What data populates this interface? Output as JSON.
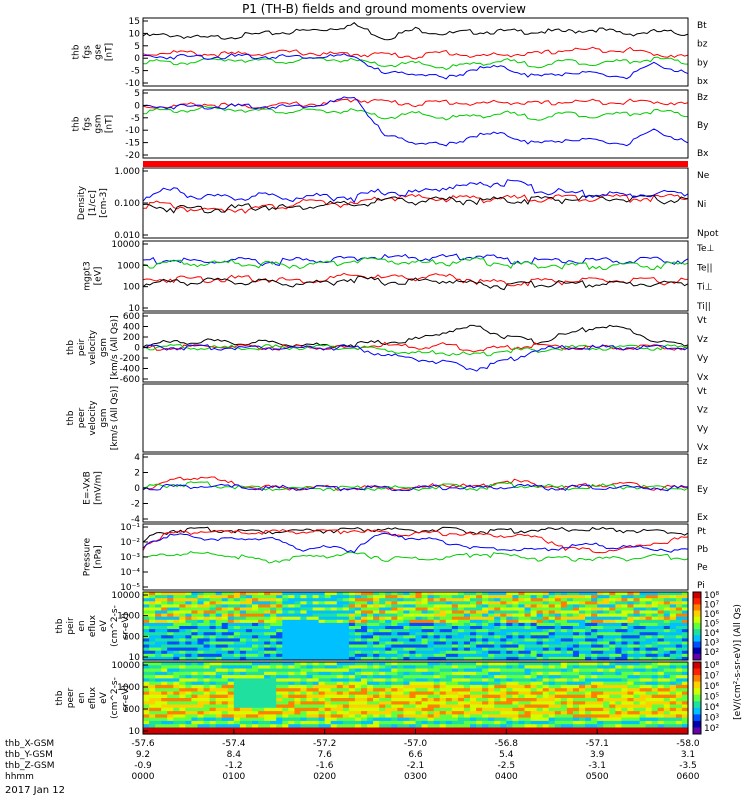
{
  "title": "P1 (TH-B) fields and ground moments overview",
  "date_label": "2017 Jan 12",
  "chart_data": [
    {
      "type": "line",
      "id": "fgs_gse",
      "ylabel": [
        "thb",
        "fgs",
        "gse",
        "[nT]"
      ],
      "yticks": [
        "15",
        "10",
        "5",
        "0",
        "-5",
        "-10"
      ],
      "ylim": [
        -13,
        17
      ],
      "legend": [
        {
          "name": "Bt",
          "color": "#000000"
        },
        {
          "name": "bz",
          "color": "#ff0000"
        },
        {
          "name": "by",
          "color": "#00cc00"
        },
        {
          "name": "bx",
          "color": "#0000ff"
        }
      ],
      "series": [
        {
          "name": "Bt",
          "color": "#000000",
          "values": [
            9,
            9.5,
            8,
            9,
            10,
            11,
            12,
            14,
            8,
            12,
            10,
            11,
            11,
            11,
            11,
            12,
            10,
            11,
            10
          ]
        },
        {
          "name": "bz",
          "color": "#ff0000",
          "values": [
            1,
            2,
            1,
            1,
            1.5,
            2,
            1,
            1,
            1,
            0,
            2,
            0,
            1,
            1,
            3,
            3,
            3,
            1,
            0
          ]
        },
        {
          "name": "by",
          "color": "#00cc00",
          "values": [
            -2,
            -3,
            -2,
            -1,
            -2,
            -2,
            -1,
            -2,
            -4,
            -3,
            -5,
            -3,
            -2,
            -4,
            -2,
            -3,
            -2,
            -1,
            -3
          ]
        },
        {
          "name": "bx",
          "color": "#0000ff",
          "values": [
            0,
            0,
            0,
            0,
            0,
            0,
            0,
            0,
            -8,
            -7,
            -10,
            -5,
            -5,
            -9,
            -7,
            -8,
            -9,
            -3,
            -8
          ]
        }
      ]
    },
    {
      "type": "line",
      "id": "fgs_gsm",
      "ylabel": [
        "thb",
        "fgs",
        "gsm",
        "[nT]"
      ],
      "yticks": [
        "5",
        "0",
        "-5",
        "-10",
        "-15",
        "-20"
      ],
      "ylim": [
        -22,
        7
      ],
      "legend": [
        {
          "name": "Bz",
          "color": "#ff0000"
        },
        {
          "name": "By",
          "color": "#00cc00"
        },
        {
          "name": "Bx",
          "color": "#0000ff"
        }
      ],
      "series": [
        {
          "name": "Bz",
          "color": "#ff0000",
          "values": [
            0,
            0,
            1,
            0,
            0,
            1,
            1,
            3,
            2,
            1,
            2,
            1,
            2,
            1,
            2,
            2,
            2,
            2,
            1
          ]
        },
        {
          "name": "By",
          "color": "#00cc00",
          "values": [
            -2,
            -2,
            -1,
            -1,
            -2,
            -2,
            -2,
            -2,
            -5,
            -3,
            -5,
            -4,
            -3,
            -5,
            -3,
            -4,
            -3,
            -2,
            -4
          ]
        },
        {
          "name": "Bx",
          "color": "#0000ff",
          "values": [
            0,
            0,
            0,
            0,
            0,
            0,
            1,
            4,
            -13,
            -15,
            -17,
            -12,
            -12,
            -16,
            -14,
            -15,
            -16,
            -10,
            -16
          ]
        }
      ]
    },
    {
      "type": "line",
      "id": "density",
      "ylabel": [
        "Density",
        "[1/cc]",
        "[cm-3]"
      ],
      "yticks": [
        "1.000",
        "0.100",
        "0.010"
      ],
      "scale": "log",
      "ylim": [
        0.003,
        1.3
      ],
      "legend": [
        {
          "name": "Ne",
          "color": "#ff0000"
        },
        {
          "name": "Ni",
          "color": "#000000"
        },
        {
          "name": "Npot",
          "color": "#0000ff"
        }
      ],
      "series": [
        {
          "name": "Ne",
          "color": "#ff0000",
          "values": [
            0.06,
            0.05,
            0.03,
            0.04,
            0.04,
            0.06,
            0.07,
            0.05,
            0.1,
            0.1,
            0.09,
            0.1,
            0.09,
            0.1,
            0.1,
            0.11,
            0.1,
            0.1,
            0.1
          ]
        },
        {
          "name": "Ni",
          "color": "#000000",
          "values": [
            0.05,
            0.04,
            0.04,
            0.04,
            0.05,
            0.04,
            0.06,
            0.05,
            0.08,
            0.08,
            0.08,
            0.08,
            0.08,
            0.09,
            0.09,
            0.09,
            0.09,
            0.09,
            0.08
          ]
        },
        {
          "name": "Npot",
          "color": "#0000ff",
          "values": [
            0.1,
            0.2,
            0.1,
            0.1,
            0.12,
            0.1,
            0.12,
            0.1,
            0.18,
            0.15,
            0.25,
            0.3,
            0.4,
            0.2,
            0.15,
            0.14,
            0.12,
            0.15,
            0.14
          ]
        }
      ]
    },
    {
      "type": "line",
      "id": "temperature",
      "ylabel": [
        "mgpt3",
        "[eV]"
      ],
      "yticks": [
        "10000",
        "1000",
        "100",
        "10"
      ],
      "scale": "log",
      "ylim": [
        10,
        10000
      ],
      "legend": [
        {
          "name": "Te⊥",
          "color": "#ff0000"
        },
        {
          "name": "Te||",
          "color": "#000000"
        },
        {
          "name": "Ti⊥",
          "color": "#0000ff"
        },
        {
          "name": "Ti||",
          "color": "#00cc00"
        }
      ],
      "series": [
        {
          "name": "Te⊥",
          "color": "#ff0000",
          "values": [
            200,
            250,
            250,
            250,
            250,
            200,
            220,
            350,
            250,
            300,
            300,
            200,
            150,
            200,
            200,
            200,
            200,
            200,
            200
          ]
        },
        {
          "name": "Te||",
          "color": "#000000",
          "values": [
            150,
            180,
            200,
            180,
            180,
            150,
            170,
            250,
            180,
            200,
            200,
            150,
            120,
            150,
            150,
            150,
            150,
            150,
            150
          ]
        },
        {
          "name": "Ti⊥",
          "color": "#0000ff",
          "values": [
            1500,
            1500,
            1200,
            1500,
            1200,
            1500,
            1500,
            2000,
            2000,
            2000,
            2000,
            2500,
            1500,
            1500,
            1500,
            1500,
            1500,
            1500,
            1500
          ]
        },
        {
          "name": "Ti||",
          "color": "#00cc00",
          "values": [
            1000,
            1200,
            1000,
            1200,
            1000,
            900,
            1000,
            1500,
            1500,
            1200,
            1200,
            1500,
            1000,
            1000,
            900,
            900,
            900,
            900,
            1000
          ]
        }
      ]
    },
    {
      "type": "line",
      "id": "peir_velocity",
      "ylabel": [
        "thb",
        "peir",
        "velocity",
        "gsm",
        "[km/s (All Qs)]"
      ],
      "yticks": [
        "600",
        "400",
        "200",
        "0",
        "-200",
        "-400",
        "-600"
      ],
      "ylim": [
        -650,
        650
      ],
      "legend": [
        {
          "name": "Vt",
          "color": "#000000"
        },
        {
          "name": "Vz",
          "color": "#ff0000"
        },
        {
          "name": "Vy",
          "color": "#00cc00"
        },
        {
          "name": "Vx",
          "color": "#0000ff"
        }
      ],
      "series": [
        {
          "name": "Vt",
          "color": "#000000",
          "values": [
            50,
            100,
            120,
            80,
            100,
            60,
            40,
            60,
            100,
            150,
            300,
            400,
            200,
            100,
            250,
            400,
            350,
            100,
            50
          ]
        },
        {
          "name": "Vz",
          "color": "#ff0000",
          "values": [
            0,
            -20,
            30,
            0,
            0,
            0,
            0,
            0,
            50,
            0,
            50,
            -50,
            0,
            50,
            0,
            0,
            0,
            0,
            0
          ]
        },
        {
          "name": "Vy",
          "color": "#00cc00",
          "values": [
            0,
            20,
            -20,
            0,
            0,
            0,
            0,
            0,
            -50,
            -100,
            -100,
            -150,
            -50,
            -50,
            0,
            0,
            0,
            0,
            0
          ]
        },
        {
          "name": "Vx",
          "color": "#0000ff",
          "values": [
            0,
            0,
            0,
            0,
            0,
            0,
            0,
            0,
            -150,
            -200,
            -300,
            -400,
            -250,
            -50,
            0,
            0,
            0,
            0,
            0
          ]
        }
      ]
    },
    {
      "type": "line",
      "id": "peer_velocity",
      "ylabel": [
        "thb",
        "peer",
        "velocity",
        "gsm",
        "[km/s (All Qs)]"
      ],
      "yticks": [],
      "ylim": [
        0,
        1
      ],
      "legend": [
        {
          "name": "Vt",
          "color": "#000000"
        },
        {
          "name": "Vz",
          "color": "#ff0000"
        },
        {
          "name": "Vy",
          "color": "#00cc00"
        },
        {
          "name": "Vx",
          "color": "#0000ff"
        }
      ],
      "series": []
    },
    {
      "type": "line",
      "id": "efield",
      "ylabel": [
        "E=-VxB",
        "[mV/m]"
      ],
      "yticks": [
        "4",
        "2",
        "0",
        "-2",
        "-4"
      ],
      "ylim": [
        -4.5,
        4.5
      ],
      "legend": [
        {
          "name": "Ez",
          "color": "#ff0000"
        },
        {
          "name": "Ey",
          "color": "#00cc00"
        },
        {
          "name": "Ex",
          "color": "#0000ff"
        }
      ],
      "series": [
        {
          "name": "Ez",
          "color": "#ff0000",
          "values": [
            0,
            1,
            1.5,
            0.5,
            0,
            0,
            0,
            0,
            0,
            0,
            0.5,
            0,
            1,
            0.5,
            0,
            0.5,
            0.5,
            0,
            0
          ]
        },
        {
          "name": "Ey",
          "color": "#00cc00",
          "values": [
            0,
            0.5,
            0.5,
            0.2,
            0,
            0,
            0,
            0,
            0,
            0,
            0.2,
            0,
            0.5,
            0.2,
            0,
            0.2,
            0.2,
            0,
            0
          ]
        },
        {
          "name": "Ex",
          "color": "#0000ff",
          "values": [
            0,
            0.2,
            0.2,
            0.1,
            0,
            0,
            0,
            0,
            0,
            0,
            0.1,
            0,
            0.2,
            0.1,
            0,
            0.1,
            0.1,
            0,
            0
          ]
        }
      ]
    },
    {
      "type": "line",
      "id": "pressure",
      "ylabel": [
        "Pressure",
        "[nPa]"
      ],
      "yticks": [
        "10⁻¹",
        "10⁻²",
        "10⁻³",
        "10⁻⁴",
        "10⁻⁵"
      ],
      "scale": "log",
      "ylim": [
        1e-05,
        0.15
      ],
      "legend": [
        {
          "name": "Pt",
          "color": "#000000"
        },
        {
          "name": "Pb",
          "color": "#ff0000"
        },
        {
          "name": "Pe",
          "color": "#00cc00"
        },
        {
          "name": "Pi",
          "color": "#0000ff"
        }
      ],
      "series": [
        {
          "name": "Pt",
          "color": "#000000",
          "values": [
            0.01,
            0.06,
            0.07,
            0.06,
            0.05,
            0.06,
            0.06,
            0.07,
            0.07,
            0.06,
            0.07,
            0.05,
            0.06,
            0.06,
            0.07,
            0.07,
            0.06,
            0.05,
            0.04
          ]
        },
        {
          "name": "Pb",
          "color": "#ff0000",
          "values": [
            0.004,
            0.04,
            0.05,
            0.04,
            0.05,
            0.05,
            0.05,
            0.06,
            0.04,
            0.04,
            0.04,
            0.03,
            0.03,
            0.02,
            0.004,
            0.003,
            0.004,
            0.01,
            0.02
          ]
        },
        {
          "name": "Pe",
          "color": "#00cc00",
          "values": [
            0.001,
            0.002,
            0.002,
            0.0015,
            0.0006,
            0.001,
            0.0015,
            0.002,
            0.001,
            0.001,
            0.001,
            0.002,
            0.0015,
            0.001,
            0.001,
            0.001,
            0.001,
            0.0015,
            0.001
          ]
        },
        {
          "name": "Pi",
          "color": "#0000ff",
          "values": [
            0.005,
            0.03,
            0.02,
            0.015,
            0.02,
            0.004,
            0.005,
            0.003,
            0.03,
            0.02,
            0.01,
            0.005,
            0.004,
            0.003,
            0.006,
            0.007,
            0.005,
            0.004,
            0.003
          ]
        }
      ]
    },
    {
      "type": "heatmap",
      "id": "peir_spec",
      "ylabel": [
        "thb",
        "peir",
        "en",
        "eflux",
        "eV",
        "(cm^2-s-",
        "sr-eV)"
      ],
      "yticks": [
        "10000",
        "1000",
        "100",
        "10"
      ],
      "scale": "log",
      "ylim": [
        6,
        13000
      ]
    },
    {
      "type": "heatmap",
      "id": "peer_spec",
      "ylabel": [
        "thb",
        "peer",
        "en",
        "eflux",
        "eV",
        "(cm^2-s-",
        "sr-eV)"
      ],
      "yticks": [
        "10000",
        "1000",
        "100",
        "10"
      ],
      "scale": "log",
      "ylim": [
        6,
        13000
      ]
    }
  ],
  "colorbar": {
    "label": "[eV/(cm²-s-sr-eV)] (All Qs)",
    "ticks_top": [
      "10⁸",
      "10⁷",
      "10⁶",
      "10⁵",
      "10⁴",
      "10³",
      "10²"
    ],
    "ticks_bottom": [
      "10⁸",
      "10⁷",
      "10⁶",
      "10⁵",
      "10⁴",
      "10³",
      "10²"
    ]
  },
  "x_axis": {
    "rows": [
      {
        "label": "thb_X-GSM",
        "values": [
          "-57.6",
          "-57.4",
          "-57.2",
          "-57.0",
          "-56.8",
          "-57.1",
          "-58.0"
        ]
      },
      {
        "label": "thb_Y-GSM",
        "values": [
          "9.2",
          "8.4",
          "7.6",
          "6.6",
          "5.4",
          "3.9",
          "3.1"
        ]
      },
      {
        "label": "thb_Z-GSM",
        "values": [
          "-0.9",
          "-1.2",
          "-1.6",
          "-2.1",
          "-2.5",
          "-3.1",
          "-3.5"
        ]
      },
      {
        "label": "hhmm",
        "values": [
          "0000",
          "0100",
          "0200",
          "0300",
          "0400",
          "0500",
          "0600"
        ]
      }
    ]
  }
}
